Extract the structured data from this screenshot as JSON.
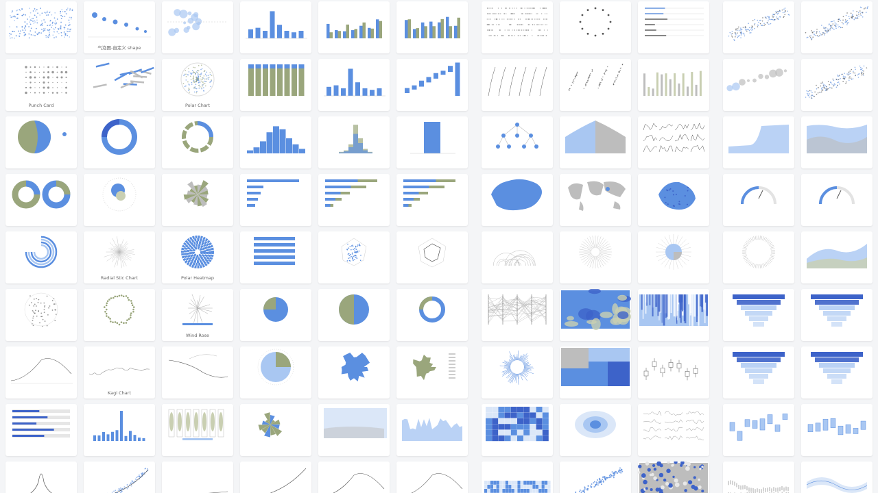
{
  "colors": {
    "blue": "#5b8fe0",
    "blue_light": "#a9c7f2",
    "blue_pale": "#dbe7f8",
    "blue_dark": "#3d63c9",
    "olive": "#9aa67c",
    "olive_light": "#c9cfb2",
    "gray": "#bdbdbd",
    "ink": "#555555"
  },
  "charts": [
    {
      "title": "",
      "icon": "scatter"
    },
    {
      "title": "气泡图-自定义 shape",
      "icon": "bubble-shape"
    },
    {
      "title": "",
      "icon": "bubble"
    },
    {
      "title": "",
      "icon": "bar-single"
    },
    {
      "title": "",
      "icon": "bar-multi"
    },
    {
      "title": "",
      "icon": "bar-multi"
    },
    {
      "title": "",
      "icon": "dots-grid"
    },
    {
      "title": "",
      "icon": "clock-scatter"
    },
    {
      "title": "",
      "icon": "lines-h"
    },
    {
      "title": "",
      "icon": "scatter-small"
    },
    {
      "title": "",
      "icon": "scatter-small"
    },
    {
      "title": "Punch Card",
      "icon": "punch-card"
    },
    {
      "title": "",
      "icon": "word-sticks"
    },
    {
      "title": "Polar Chart",
      "icon": "polar-scatter"
    },
    {
      "title": "",
      "icon": "stacked-bar"
    },
    {
      "title": "",
      "icon": "bar-single"
    },
    {
      "title": "",
      "icon": "waterfall"
    },
    {
      "title": "",
      "icon": "line-clusters"
    },
    {
      "title": "",
      "icon": "dot-clusters"
    },
    {
      "title": "",
      "icon": "box-bars"
    },
    {
      "title": "",
      "icon": "bubble-line"
    },
    {
      "title": "",
      "icon": "scatter-small"
    },
    {
      "title": "",
      "icon": "pie"
    },
    {
      "title": "",
      "icon": "donut"
    },
    {
      "title": "",
      "icon": "ring"
    },
    {
      "title": "",
      "icon": "histogram"
    },
    {
      "title": "",
      "icon": "histogram-layered"
    },
    {
      "title": "",
      "icon": "single-bar"
    },
    {
      "title": "",
      "icon": "tree"
    },
    {
      "title": "",
      "icon": "mountain"
    },
    {
      "title": "",
      "icon": "small-multiples"
    },
    {
      "title": "",
      "icon": "area-step"
    },
    {
      "title": "",
      "icon": "area-stream"
    },
    {
      "title": "",
      "icon": "two-pies"
    },
    {
      "title": "",
      "icon": "radial-pie"
    },
    {
      "title": "",
      "icon": "rose-pie"
    },
    {
      "title": "",
      "icon": "hbar"
    },
    {
      "title": "",
      "icon": "hbar-stacked"
    },
    {
      "title": "",
      "icon": "hbar-stacked"
    },
    {
      "title": "",
      "icon": "map-china"
    },
    {
      "title": "",
      "icon": "map-world"
    },
    {
      "title": "",
      "icon": "map-region"
    },
    {
      "title": "",
      "icon": "gauge"
    },
    {
      "title": "",
      "icon": "gauge"
    },
    {
      "title": "",
      "icon": "spiral-arc"
    },
    {
      "title": "Radial Stic Chart",
      "icon": "radial-stick"
    },
    {
      "title": "Polar Heatmap",
      "icon": "polar-heatmap"
    },
    {
      "title": "",
      "icon": "hbar-even"
    },
    {
      "title": "",
      "icon": "radar-dots"
    },
    {
      "title": "",
      "icon": "radar"
    },
    {
      "title": "",
      "icon": "arc-diagram"
    },
    {
      "title": "",
      "icon": "sunburst-rays"
    },
    {
      "title": "",
      "icon": "pie-rays"
    },
    {
      "title": "",
      "icon": "ticks-circle"
    },
    {
      "title": "",
      "icon": "area-double"
    },
    {
      "title": "",
      "icon": "radial-dots"
    },
    {
      "title": "",
      "icon": "circle-dots"
    },
    {
      "title": "Wind Rose",
      "icon": "wind-rose"
    },
    {
      "title": "",
      "icon": "pie-small"
    },
    {
      "title": "",
      "icon": "pie-half"
    },
    {
      "title": "",
      "icon": "donut-thin"
    },
    {
      "title": "",
      "icon": "parallel"
    },
    {
      "title": "",
      "icon": "voronoi"
    },
    {
      "title": "",
      "icon": "barcode"
    },
    {
      "title": "",
      "icon": "funnel"
    },
    {
      "title": "",
      "icon": "funnel"
    },
    {
      "title": "",
      "icon": "line-curve"
    },
    {
      "title": "Kagi Chart",
      "icon": "kagi"
    },
    {
      "title": "",
      "icon": "line-annot"
    },
    {
      "title": "",
      "icon": "pie-circle"
    },
    {
      "title": "",
      "icon": "rose-blob"
    },
    {
      "title": "",
      "icon": "rose-legend"
    },
    {
      "title": "",
      "icon": "spiky-circle"
    },
    {
      "title": "",
      "icon": "treemap"
    },
    {
      "title": "",
      "icon": "boxplot"
    },
    {
      "title": "",
      "icon": "funnel"
    },
    {
      "title": "",
      "icon": "funnel"
    },
    {
      "title": "",
      "icon": "bullet"
    },
    {
      "title": "",
      "icon": "bar-spike"
    },
    {
      "title": "",
      "icon": "violin-grid"
    },
    {
      "title": "",
      "icon": "rose-small"
    },
    {
      "title": "",
      "icon": "area-band"
    },
    {
      "title": "",
      "icon": "area-noise"
    },
    {
      "title": "",
      "icon": "heatmap"
    },
    {
      "title": "",
      "icon": "density"
    },
    {
      "title": "",
      "icon": "sparkline-grid"
    },
    {
      "title": "",
      "icon": "box-float"
    },
    {
      "title": "",
      "icon": "box-float"
    },
    {
      "title": "",
      "icon": "peak"
    },
    {
      "title": "",
      "icon": "scatter-trend"
    },
    {
      "title": "",
      "icon": "line-flat"
    },
    {
      "title": "",
      "icon": "line-rise"
    },
    {
      "title": "",
      "icon": "line-curve"
    },
    {
      "title": "",
      "icon": "line-curve"
    },
    {
      "title": "",
      "icon": "heat-strip"
    },
    {
      "title": "",
      "icon": "scatter-diag"
    },
    {
      "title": "",
      "icon": "hex-dots"
    },
    {
      "title": "",
      "icon": "candles"
    },
    {
      "title": "",
      "icon": "wave-band"
    }
  ]
}
